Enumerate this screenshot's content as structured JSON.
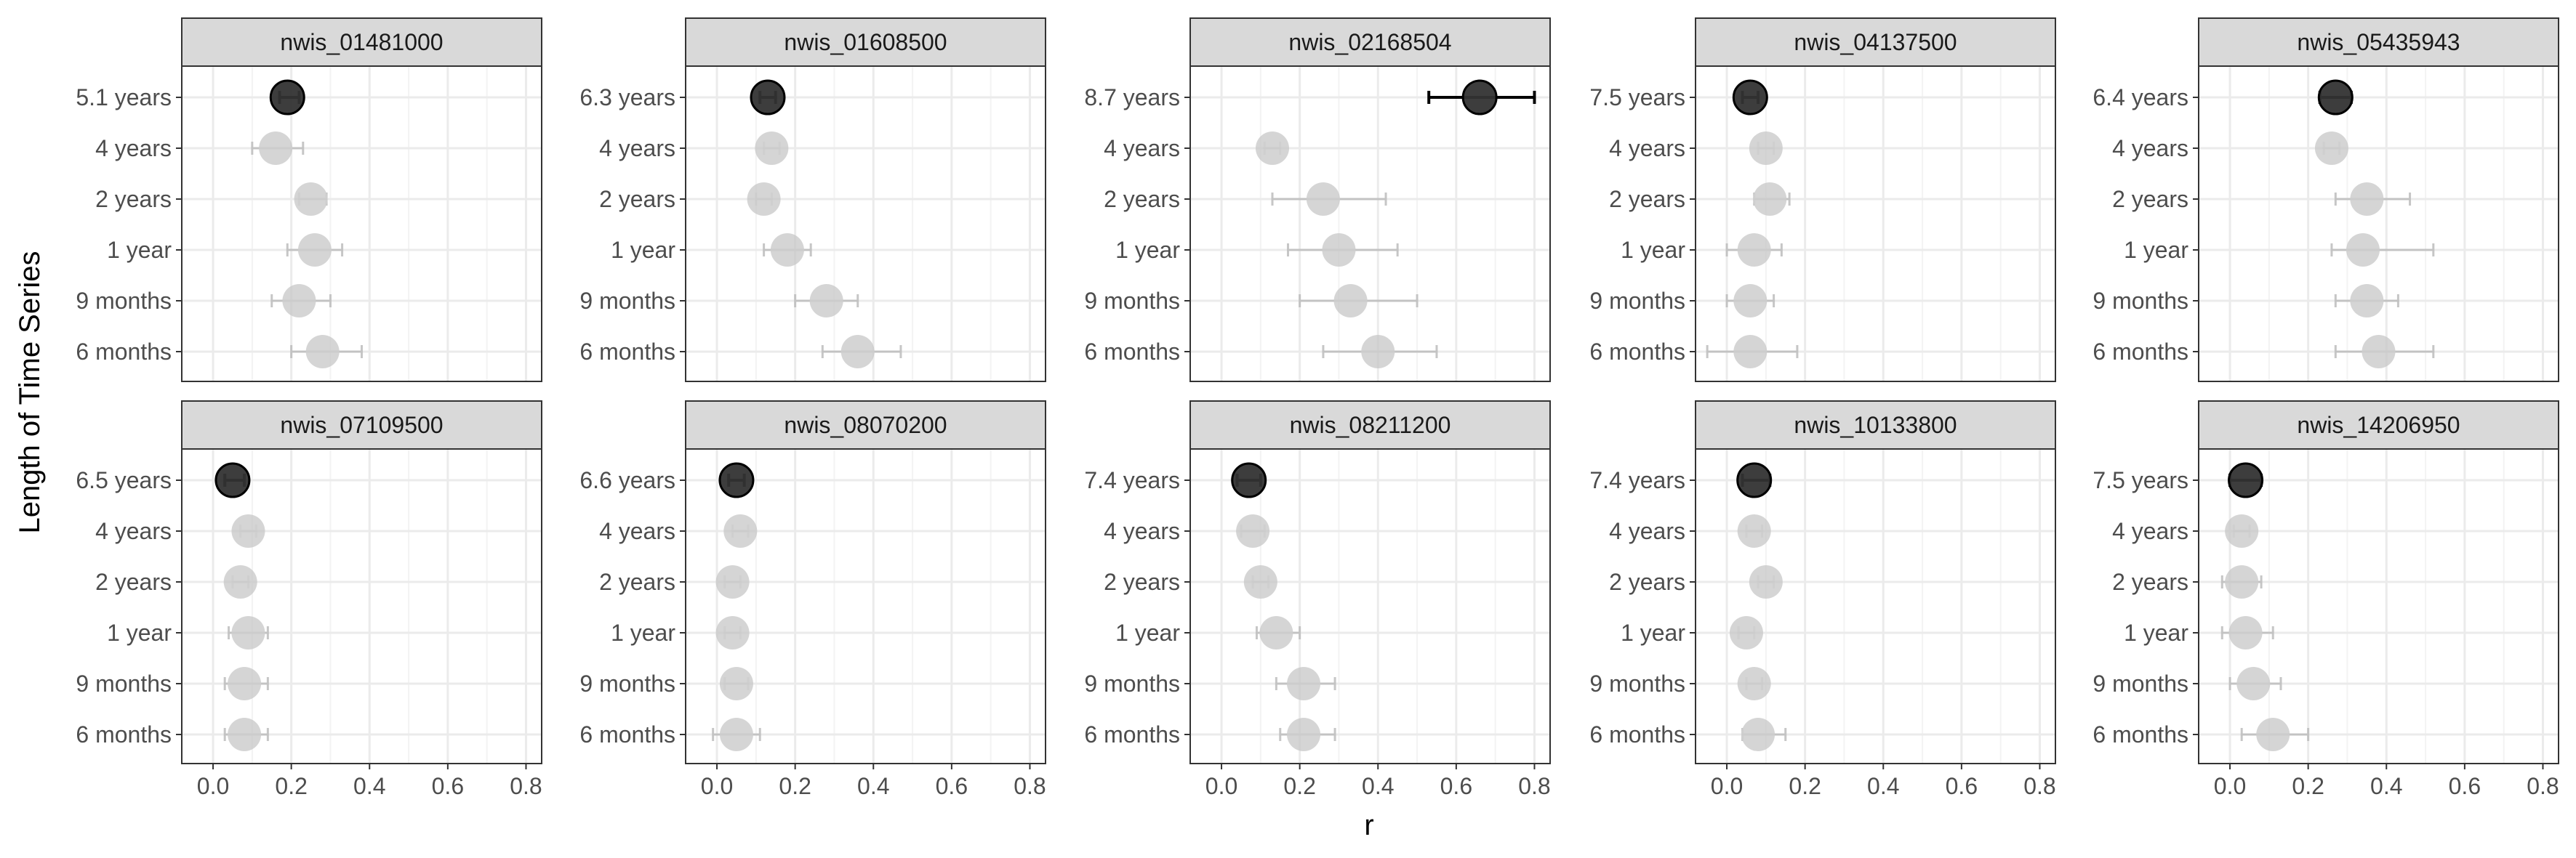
{
  "chart_data": {
    "type": "scatter",
    "title": "",
    "xlabel": "r",
    "ylabel": "Length of Time Series",
    "xlim": [
      -0.08,
      0.84
    ],
    "x_ticks": [
      "0.0",
      "0.2",
      "0.4",
      "0.6",
      "0.8"
    ],
    "x_tick_values": [
      0.0,
      0.2,
      0.4,
      0.6,
      0.8
    ],
    "grid": true,
    "legend": "none",
    "colors": {
      "highlight": "#333333",
      "other": "#c8c8c8",
      "strip_fill": "#d9d9d9",
      "panel_border": "#333333",
      "grid": "#ebebeb"
    },
    "facets": [
      {
        "id": "nwis_01481000",
        "categories": [
          "5.1 years",
          "4 years",
          "2 years",
          "1 year",
          "9 months",
          "6 months"
        ],
        "points": [
          {
            "r": 0.19,
            "lo": 0.17,
            "hi": 0.22,
            "highlight": true
          },
          {
            "r": 0.16,
            "lo": 0.1,
            "hi": 0.23,
            "highlight": false
          },
          {
            "r": 0.25,
            "lo": 0.22,
            "hi": 0.29,
            "highlight": false
          },
          {
            "r": 0.26,
            "lo": 0.19,
            "hi": 0.33,
            "highlight": false
          },
          {
            "r": 0.22,
            "lo": 0.15,
            "hi": 0.3,
            "highlight": false
          },
          {
            "r": 0.28,
            "lo": 0.2,
            "hi": 0.38,
            "highlight": false
          }
        ]
      },
      {
        "id": "nwis_01608500",
        "categories": [
          "6.3 years",
          "4 years",
          "2 years",
          "1 year",
          "9 months",
          "6 months"
        ],
        "points": [
          {
            "r": 0.13,
            "lo": 0.11,
            "hi": 0.15,
            "highlight": true
          },
          {
            "r": 0.14,
            "lo": 0.12,
            "hi": 0.16,
            "highlight": false
          },
          {
            "r": 0.12,
            "lo": 0.1,
            "hi": 0.14,
            "highlight": false
          },
          {
            "r": 0.18,
            "lo": 0.12,
            "hi": 0.24,
            "highlight": false
          },
          {
            "r": 0.28,
            "lo": 0.2,
            "hi": 0.36,
            "highlight": false
          },
          {
            "r": 0.36,
            "lo": 0.27,
            "hi": 0.47,
            "highlight": false
          }
        ]
      },
      {
        "id": "nwis_02168504",
        "categories": [
          "8.7 years",
          "4 years",
          "2 years",
          "1 year",
          "9 months",
          "6 months"
        ],
        "points": [
          {
            "r": 0.66,
            "lo": 0.53,
            "hi": 0.8,
            "highlight": true
          },
          {
            "r": 0.13,
            "lo": 0.11,
            "hi": 0.15,
            "highlight": false
          },
          {
            "r": 0.26,
            "lo": 0.13,
            "hi": 0.42,
            "highlight": false
          },
          {
            "r": 0.3,
            "lo": 0.17,
            "hi": 0.45,
            "highlight": false
          },
          {
            "r": 0.33,
            "lo": 0.2,
            "hi": 0.5,
            "highlight": false
          },
          {
            "r": 0.4,
            "lo": 0.26,
            "hi": 0.55,
            "highlight": false
          }
        ]
      },
      {
        "id": "nwis_04137500",
        "categories": [
          "7.5 years",
          "4 years",
          "2 years",
          "1 year",
          "9 months",
          "6 months"
        ],
        "points": [
          {
            "r": 0.06,
            "lo": 0.04,
            "hi": 0.08,
            "highlight": true
          },
          {
            "r": 0.1,
            "lo": 0.08,
            "hi": 0.12,
            "highlight": false
          },
          {
            "r": 0.11,
            "lo": 0.07,
            "hi": 0.16,
            "highlight": false
          },
          {
            "r": 0.07,
            "lo": 0.0,
            "hi": 0.14,
            "highlight": false
          },
          {
            "r": 0.06,
            "lo": 0.0,
            "hi": 0.12,
            "highlight": false
          },
          {
            "r": 0.06,
            "lo": -0.05,
            "hi": 0.18,
            "highlight": false
          }
        ]
      },
      {
        "id": "nwis_05435943",
        "categories": [
          "6.4 years",
          "4 years",
          "2 years",
          "1 year",
          "9 months",
          "6 months"
        ],
        "points": [
          {
            "r": 0.27,
            "lo": 0.23,
            "hi": 0.31,
            "highlight": true
          },
          {
            "r": 0.26,
            "lo": 0.24,
            "hi": 0.28,
            "highlight": false
          },
          {
            "r": 0.35,
            "lo": 0.27,
            "hi": 0.46,
            "highlight": false
          },
          {
            "r": 0.34,
            "lo": 0.26,
            "hi": 0.52,
            "highlight": false
          },
          {
            "r": 0.35,
            "lo": 0.27,
            "hi": 0.43,
            "highlight": false
          },
          {
            "r": 0.38,
            "lo": 0.27,
            "hi": 0.52,
            "highlight": false
          }
        ]
      },
      {
        "id": "nwis_07109500",
        "categories": [
          "6.5 years",
          "4 years",
          "2 years",
          "1 year",
          "9 months",
          "6 months"
        ],
        "points": [
          {
            "r": 0.05,
            "lo": 0.03,
            "hi": 0.08,
            "highlight": true
          },
          {
            "r": 0.09,
            "lo": 0.07,
            "hi": 0.11,
            "highlight": false
          },
          {
            "r": 0.07,
            "lo": 0.05,
            "hi": 0.09,
            "highlight": false
          },
          {
            "r": 0.09,
            "lo": 0.04,
            "hi": 0.14,
            "highlight": false
          },
          {
            "r": 0.08,
            "lo": 0.03,
            "hi": 0.14,
            "highlight": false
          },
          {
            "r": 0.08,
            "lo": 0.03,
            "hi": 0.14,
            "highlight": false
          }
        ]
      },
      {
        "id": "nwis_08070200",
        "categories": [
          "6.6 years",
          "4 years",
          "2 years",
          "1 year",
          "9 months",
          "6 months"
        ],
        "points": [
          {
            "r": 0.05,
            "lo": 0.03,
            "hi": 0.07,
            "highlight": true
          },
          {
            "r": 0.06,
            "lo": 0.04,
            "hi": 0.08,
            "highlight": false
          },
          {
            "r": 0.04,
            "lo": 0.02,
            "hi": 0.06,
            "highlight": false
          },
          {
            "r": 0.04,
            "lo": 0.02,
            "hi": 0.06,
            "highlight": false
          },
          {
            "r": 0.05,
            "lo": 0.02,
            "hi": 0.08,
            "highlight": false
          },
          {
            "r": 0.05,
            "lo": -0.01,
            "hi": 0.11,
            "highlight": false
          }
        ]
      },
      {
        "id": "nwis_08211200",
        "categories": [
          "7.4 years",
          "4 years",
          "2 years",
          "1 year",
          "9 months",
          "6 months"
        ],
        "points": [
          {
            "r": 0.07,
            "lo": 0.04,
            "hi": 0.1,
            "highlight": true
          },
          {
            "r": 0.08,
            "lo": 0.05,
            "hi": 0.11,
            "highlight": false
          },
          {
            "r": 0.1,
            "lo": 0.08,
            "hi": 0.12,
            "highlight": false
          },
          {
            "r": 0.14,
            "lo": 0.09,
            "hi": 0.2,
            "highlight": false
          },
          {
            "r": 0.21,
            "lo": 0.14,
            "hi": 0.29,
            "highlight": false
          },
          {
            "r": 0.21,
            "lo": 0.15,
            "hi": 0.29,
            "highlight": false
          }
        ]
      },
      {
        "id": "nwis_10133800",
        "categories": [
          "7.4 years",
          "4 years",
          "2 years",
          "1 year",
          "9 months",
          "6 months"
        ],
        "points": [
          {
            "r": 0.07,
            "lo": 0.04,
            "hi": 0.11,
            "highlight": true
          },
          {
            "r": 0.07,
            "lo": 0.05,
            "hi": 0.09,
            "highlight": false
          },
          {
            "r": 0.1,
            "lo": 0.08,
            "hi": 0.12,
            "highlight": false
          },
          {
            "r": 0.05,
            "lo": 0.03,
            "hi": 0.07,
            "highlight": false
          },
          {
            "r": 0.07,
            "lo": 0.05,
            "hi": 0.09,
            "highlight": false
          },
          {
            "r": 0.08,
            "lo": 0.04,
            "hi": 0.15,
            "highlight": false
          }
        ]
      },
      {
        "id": "nwis_14206950",
        "categories": [
          "7.5 years",
          "4 years",
          "2 years",
          "1 year",
          "9 months",
          "6 months"
        ],
        "points": [
          {
            "r": 0.04,
            "lo": 0.0,
            "hi": 0.08,
            "highlight": true
          },
          {
            "r": 0.03,
            "lo": 0.01,
            "hi": 0.05,
            "highlight": false
          },
          {
            "r": 0.03,
            "lo": -0.02,
            "hi": 0.08,
            "highlight": false
          },
          {
            "r": 0.04,
            "lo": -0.02,
            "hi": 0.11,
            "highlight": false
          },
          {
            "r": 0.06,
            "lo": 0.0,
            "hi": 0.13,
            "highlight": false
          },
          {
            "r": 0.11,
            "lo": 0.03,
            "hi": 0.2,
            "highlight": false
          }
        ]
      }
    ]
  }
}
